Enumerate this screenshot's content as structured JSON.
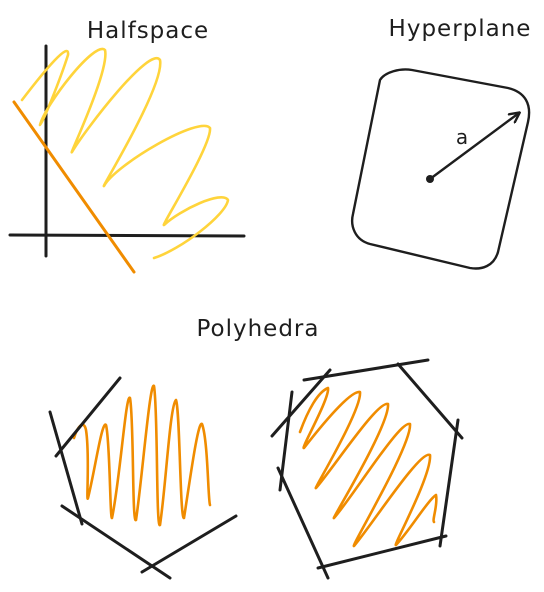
{
  "titles": {
    "halfspace": "Halfspace",
    "hyperplane": "Hyperplane",
    "polyhedra": "Polyhedra"
  },
  "hyperplane": {
    "vector_label": "a"
  },
  "colors": {
    "ink": "#1e1e1e",
    "light_fill": "#ffd43b",
    "dark_fill": "#f08c00",
    "boundary": "#f08c00"
  }
}
